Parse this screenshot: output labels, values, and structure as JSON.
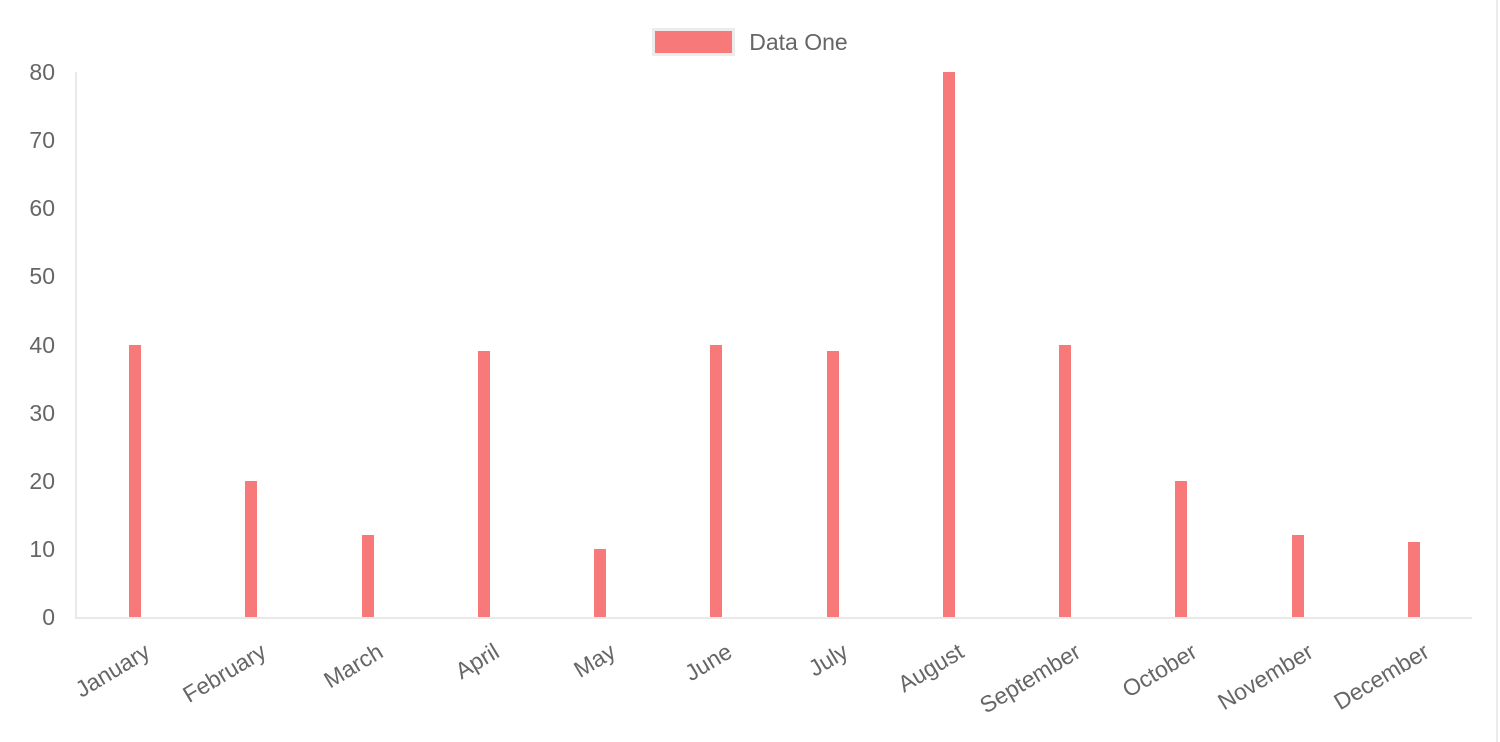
{
  "legend": {
    "label": "Data One"
  },
  "colors": {
    "bar": "#f87979",
    "axis_line": "#e9e9e9",
    "tick_label": "#666666",
    "background": "#ffffff"
  },
  "chart_data": {
    "type": "bar",
    "title": "",
    "xlabel": "",
    "ylabel": "",
    "categories": [
      "January",
      "February",
      "March",
      "April",
      "May",
      "June",
      "July",
      "August",
      "September",
      "October",
      "November",
      "December"
    ],
    "series": [
      {
        "name": "Data One",
        "color": "#f87979",
        "values": [
          40,
          20,
          12,
          39,
          10,
          40,
          39,
          80,
          40,
          20,
          12,
          11
        ]
      }
    ],
    "ylim": [
      0,
      80
    ],
    "yticks": [
      0,
      10,
      20,
      30,
      40,
      50,
      60,
      70,
      80
    ],
    "grid": false,
    "legend_position": "top",
    "x_tick_rotation_deg": -31
  }
}
